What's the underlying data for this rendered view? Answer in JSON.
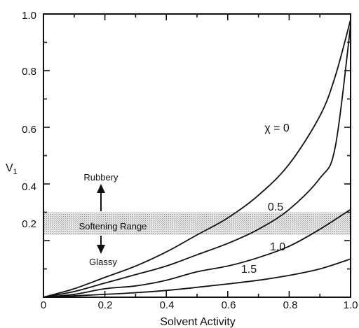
{
  "chart_data": {
    "type": "line",
    "xlabel": "Solvent Activity",
    "ylabel": "V1",
    "xlim": [
      0,
      1.0
    ],
    "ylim": [
      0,
      1.0
    ],
    "x_ticks": [
      "0",
      "0.2",
      "0.4",
      "0.6",
      "0.8",
      "1.0"
    ],
    "y_ticks": [
      "0",
      "0.2",
      "0.4",
      "0.6",
      "0.8",
      "1.0"
    ],
    "grid": false,
    "band": {
      "y_range": [
        0.22,
        0.3
      ],
      "label": "Softening Range"
    },
    "annotations": {
      "up": "Rubbery",
      "down": "Glassy"
    },
    "series": [
      {
        "name": "χ = 0",
        "x": [
          0,
          0.1,
          0.2,
          0.3,
          0.4,
          0.5,
          0.6,
          0.7,
          0.8,
          0.9,
          0.95,
          1.0
        ],
        "y": [
          0,
          0.03,
          0.07,
          0.11,
          0.16,
          0.22,
          0.28,
          0.36,
          0.47,
          0.64,
          0.78,
          0.98
        ]
      },
      {
        "name": "0.5",
        "x": [
          0,
          0.1,
          0.2,
          0.3,
          0.4,
          0.5,
          0.6,
          0.7,
          0.8,
          0.9,
          0.95,
          1.0
        ],
        "y": [
          0,
          0.02,
          0.05,
          0.08,
          0.11,
          0.15,
          0.19,
          0.24,
          0.31,
          0.42,
          0.53,
          0.96
        ]
      },
      {
        "name": "1.0",
        "x": [
          0,
          0.1,
          0.2,
          0.3,
          0.4,
          0.5,
          0.6,
          0.7,
          0.8,
          0.9,
          1.0
        ],
        "y": [
          0,
          0.01,
          0.03,
          0.04,
          0.06,
          0.09,
          0.11,
          0.14,
          0.18,
          0.24,
          0.31
        ]
      },
      {
        "name": "1.5",
        "x": [
          0,
          0.1,
          0.2,
          0.3,
          0.4,
          0.5,
          0.6,
          0.7,
          0.8,
          0.9,
          1.0
        ],
        "y": [
          0,
          0.005,
          0.01,
          0.016,
          0.024,
          0.035,
          0.047,
          0.06,
          0.077,
          0.1,
          0.135
        ]
      }
    ],
    "curve_labels": [
      "χ = 0",
      "0.5",
      "1.0",
      "1.5"
    ]
  }
}
